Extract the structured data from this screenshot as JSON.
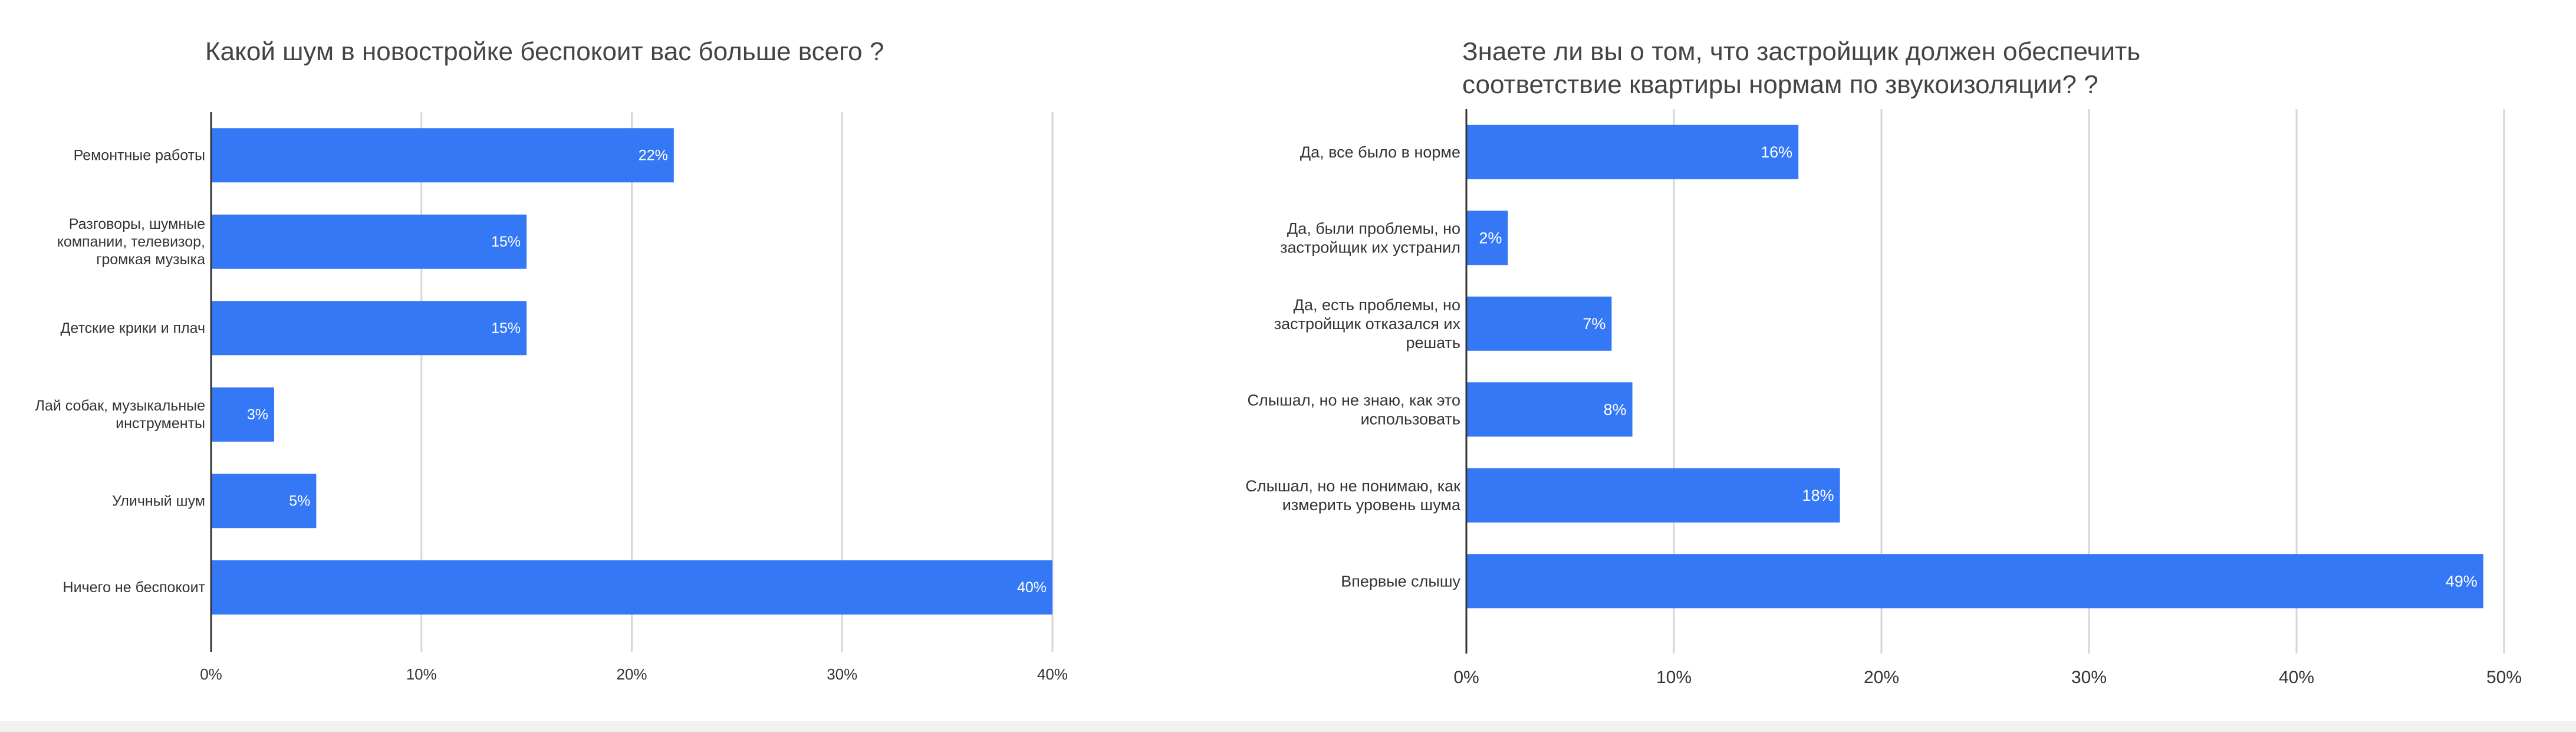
{
  "charts": [
    {
      "title": "Какой шум в новостройке беспокоит вас больше всего ?",
      "chart_data": {
        "type": "bar",
        "orientation": "horizontal",
        "categories": [
          "Ремонтные работы",
          "Разговоры, шумные компании, телевизор, громкая музыка",
          "Детские крики и плач",
          "Лай собак, музыкальные инструменты",
          "Уличный шум",
          "Ничего не беспокоит"
        ],
        "category_lines": [
          [
            "Ремонтные работы"
          ],
          [
            "Разговоры, шумные",
            "компании, телевизор,",
            "громкая музыка"
          ],
          [
            "Детские крики и плач"
          ],
          [
            "Лай собак, музыкальные",
            "инструменты"
          ],
          [
            "Уличный шум"
          ],
          [
            "Ничего не беспокоит"
          ]
        ],
        "values": [
          22,
          15,
          15,
          3,
          5,
          40
        ],
        "data_labels": [
          "22%",
          "15%",
          "15%",
          "3%",
          "5%",
          "40%"
        ],
        "xlim": [
          0,
          40
        ],
        "x_ticks": [
          0,
          10,
          20,
          30,
          40
        ],
        "x_tick_labels": [
          "0%",
          "10%",
          "20%",
          "30%",
          "40%"
        ],
        "grid": "vertical",
        "bar_color": "#3478f6"
      }
    },
    {
      "title": "Знаете ли вы о том, что застройщик должен обеспечить\nсоответствие квартиры нормам по звукоизоляции? ?",
      "chart_data": {
        "type": "bar",
        "orientation": "horizontal",
        "categories": [
          "Да, все было в норме",
          "Да, были проблемы, но застройщик их устранил",
          "Да, есть проблемы, но застройщик отказался их решать",
          "Слышал, но не знаю, как это использовать",
          "Слышал, но не понимаю, как измерить уровень шума",
          "Впервые слышу"
        ],
        "category_lines": [
          [
            "Да, все было в норме"
          ],
          [
            "Да, были проблемы, но",
            "застройщик их устранил"
          ],
          [
            "Да, есть проблемы, но",
            "застройщик отказался их",
            "решать"
          ],
          [
            "Слышал, но не знаю, как это",
            "использовать"
          ],
          [
            "Слышал, но не понимаю, как",
            "измерить уровень шума"
          ],
          [
            "Впервые слышу"
          ]
        ],
        "values": [
          16,
          2,
          7,
          8,
          18,
          49
        ],
        "data_labels": [
          "16%",
          "2%",
          "7%",
          "8%",
          "18%",
          "49%"
        ],
        "xlim": [
          0,
          50
        ],
        "x_ticks": [
          0,
          10,
          20,
          30,
          40,
          50
        ],
        "x_tick_labels": [
          "0%",
          "10%",
          "20%",
          "30%",
          "40%",
          "50%"
        ],
        "grid": "vertical",
        "bar_color": "#3478f6"
      }
    }
  ]
}
